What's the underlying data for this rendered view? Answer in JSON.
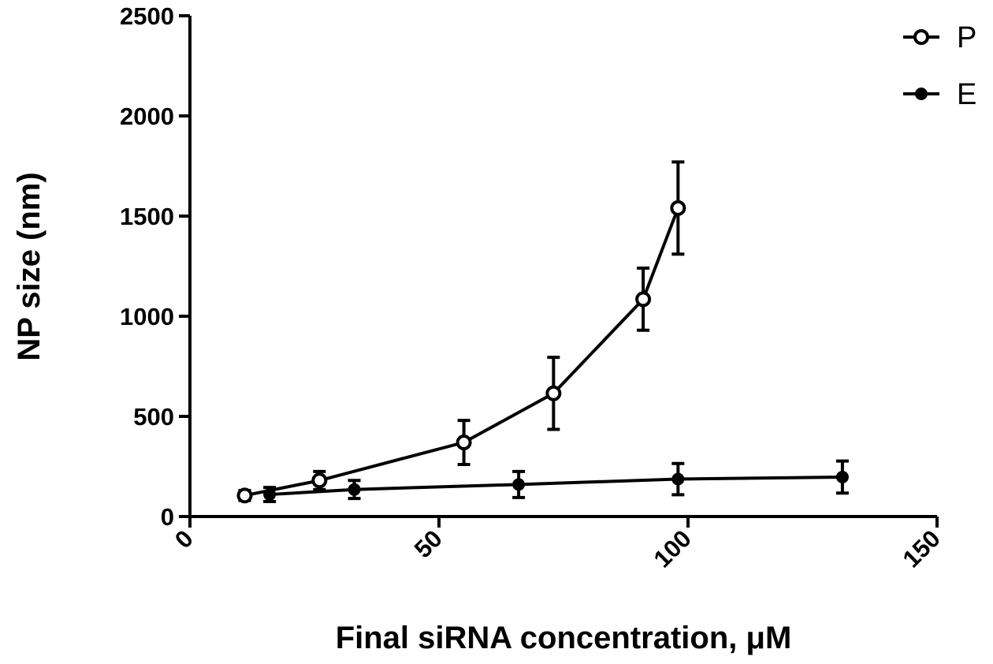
{
  "chart_data": {
    "type": "line",
    "title": "",
    "xlabel": "Final siRNA concentration, μM",
    "ylabel": "NP size (nm)",
    "xlim": [
      0,
      150
    ],
    "ylim": [
      0,
      2500
    ],
    "xticks": [
      "0",
      "50",
      "100",
      "150"
    ],
    "yticks": [
      "0",
      "500",
      "1000",
      "1500",
      "2000",
      "2500"
    ],
    "legend_position": "top-right",
    "grid": false,
    "series": [
      {
        "name": "P",
        "marker": "open-circle",
        "color": "#000000",
        "x": [
          11,
          26,
          55,
          73,
          91,
          98
        ],
        "y": [
          105,
          180,
          370,
          615,
          1085,
          1540
        ],
        "error": [
          25,
          45,
          110,
          180,
          155,
          230
        ]
      },
      {
        "name": "E",
        "marker": "filled-circle",
        "color": "#000000",
        "x": [
          16,
          33,
          66,
          98,
          131
        ],
        "y": [
          110,
          135,
          160,
          187,
          197
        ],
        "error": [
          35,
          45,
          65,
          78,
          80
        ]
      }
    ]
  }
}
